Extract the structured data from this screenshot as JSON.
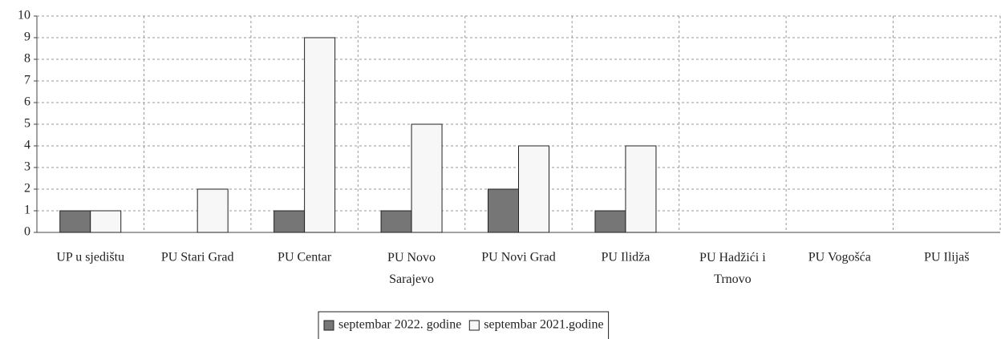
{
  "chart_data": {
    "type": "bar",
    "categories": [
      "UP u sjedištu",
      "PU Stari Grad",
      "PU Centar",
      "PU Novo Sarajevo",
      "PU Novi Grad",
      "PU Ilidža",
      "PU Hadžići i Trnovo",
      "PU Vogošća",
      "PU Ilijaš"
    ],
    "series": [
      {
        "name": "septembar 2022. godine",
        "color": "#767676",
        "values": [
          1,
          0,
          1,
          1,
          2,
          1,
          0,
          0,
          0
        ]
      },
      {
        "name": "septembar 2021.godine",
        "color": "#f7f7f7",
        "values": [
          1,
          2,
          9,
          5,
          4,
          4,
          0,
          0,
          0
        ]
      }
    ],
    "ylim": [
      0,
      10
    ],
    "yticks": [
      0,
      1,
      2,
      3,
      4,
      5,
      6,
      7,
      8,
      9,
      10
    ],
    "grid": true,
    "legend": "bottom"
  }
}
